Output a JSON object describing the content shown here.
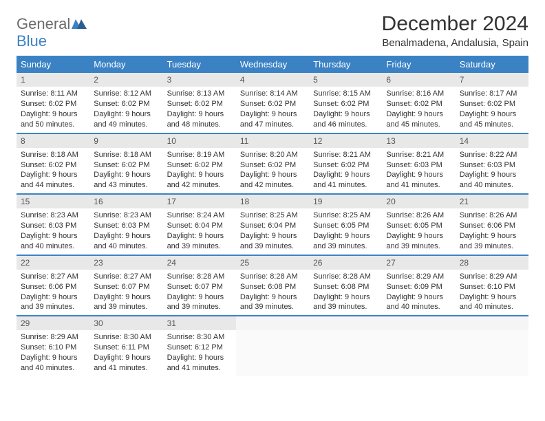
{
  "logo": {
    "text1": "General",
    "text2": "Blue"
  },
  "title": "December 2024",
  "location": "Benalmadena, Andalusia, Spain",
  "colors": {
    "header_bg": "#3b82c4",
    "daynum_bg": "#e8e8e8",
    "text": "#333333",
    "logo_gray": "#6b6b6b",
    "logo_blue": "#3b82c4"
  },
  "day_names": [
    "Sunday",
    "Monday",
    "Tuesday",
    "Wednesday",
    "Thursday",
    "Friday",
    "Saturday"
  ],
  "weeks": [
    [
      {
        "n": "1",
        "sr": "Sunrise: 8:11 AM",
        "ss": "Sunset: 6:02 PM",
        "d1": "Daylight: 9 hours",
        "d2": "and 50 minutes."
      },
      {
        "n": "2",
        "sr": "Sunrise: 8:12 AM",
        "ss": "Sunset: 6:02 PM",
        "d1": "Daylight: 9 hours",
        "d2": "and 49 minutes."
      },
      {
        "n": "3",
        "sr": "Sunrise: 8:13 AM",
        "ss": "Sunset: 6:02 PM",
        "d1": "Daylight: 9 hours",
        "d2": "and 48 minutes."
      },
      {
        "n": "4",
        "sr": "Sunrise: 8:14 AM",
        "ss": "Sunset: 6:02 PM",
        "d1": "Daylight: 9 hours",
        "d2": "and 47 minutes."
      },
      {
        "n": "5",
        "sr": "Sunrise: 8:15 AM",
        "ss": "Sunset: 6:02 PM",
        "d1": "Daylight: 9 hours",
        "d2": "and 46 minutes."
      },
      {
        "n": "6",
        "sr": "Sunrise: 8:16 AM",
        "ss": "Sunset: 6:02 PM",
        "d1": "Daylight: 9 hours",
        "d2": "and 45 minutes."
      },
      {
        "n": "7",
        "sr": "Sunrise: 8:17 AM",
        "ss": "Sunset: 6:02 PM",
        "d1": "Daylight: 9 hours",
        "d2": "and 45 minutes."
      }
    ],
    [
      {
        "n": "8",
        "sr": "Sunrise: 8:18 AM",
        "ss": "Sunset: 6:02 PM",
        "d1": "Daylight: 9 hours",
        "d2": "and 44 minutes."
      },
      {
        "n": "9",
        "sr": "Sunrise: 8:18 AM",
        "ss": "Sunset: 6:02 PM",
        "d1": "Daylight: 9 hours",
        "d2": "and 43 minutes."
      },
      {
        "n": "10",
        "sr": "Sunrise: 8:19 AM",
        "ss": "Sunset: 6:02 PM",
        "d1": "Daylight: 9 hours",
        "d2": "and 42 minutes."
      },
      {
        "n": "11",
        "sr": "Sunrise: 8:20 AM",
        "ss": "Sunset: 6:02 PM",
        "d1": "Daylight: 9 hours",
        "d2": "and 42 minutes."
      },
      {
        "n": "12",
        "sr": "Sunrise: 8:21 AM",
        "ss": "Sunset: 6:02 PM",
        "d1": "Daylight: 9 hours",
        "d2": "and 41 minutes."
      },
      {
        "n": "13",
        "sr": "Sunrise: 8:21 AM",
        "ss": "Sunset: 6:03 PM",
        "d1": "Daylight: 9 hours",
        "d2": "and 41 minutes."
      },
      {
        "n": "14",
        "sr": "Sunrise: 8:22 AM",
        "ss": "Sunset: 6:03 PM",
        "d1": "Daylight: 9 hours",
        "d2": "and 40 minutes."
      }
    ],
    [
      {
        "n": "15",
        "sr": "Sunrise: 8:23 AM",
        "ss": "Sunset: 6:03 PM",
        "d1": "Daylight: 9 hours",
        "d2": "and 40 minutes."
      },
      {
        "n": "16",
        "sr": "Sunrise: 8:23 AM",
        "ss": "Sunset: 6:03 PM",
        "d1": "Daylight: 9 hours",
        "d2": "and 40 minutes."
      },
      {
        "n": "17",
        "sr": "Sunrise: 8:24 AM",
        "ss": "Sunset: 6:04 PM",
        "d1": "Daylight: 9 hours",
        "d2": "and 39 minutes."
      },
      {
        "n": "18",
        "sr": "Sunrise: 8:25 AM",
        "ss": "Sunset: 6:04 PM",
        "d1": "Daylight: 9 hours",
        "d2": "and 39 minutes."
      },
      {
        "n": "19",
        "sr": "Sunrise: 8:25 AM",
        "ss": "Sunset: 6:05 PM",
        "d1": "Daylight: 9 hours",
        "d2": "and 39 minutes."
      },
      {
        "n": "20",
        "sr": "Sunrise: 8:26 AM",
        "ss": "Sunset: 6:05 PM",
        "d1": "Daylight: 9 hours",
        "d2": "and 39 minutes."
      },
      {
        "n": "21",
        "sr": "Sunrise: 8:26 AM",
        "ss": "Sunset: 6:06 PM",
        "d1": "Daylight: 9 hours",
        "d2": "and 39 minutes."
      }
    ],
    [
      {
        "n": "22",
        "sr": "Sunrise: 8:27 AM",
        "ss": "Sunset: 6:06 PM",
        "d1": "Daylight: 9 hours",
        "d2": "and 39 minutes."
      },
      {
        "n": "23",
        "sr": "Sunrise: 8:27 AM",
        "ss": "Sunset: 6:07 PM",
        "d1": "Daylight: 9 hours",
        "d2": "and 39 minutes."
      },
      {
        "n": "24",
        "sr": "Sunrise: 8:28 AM",
        "ss": "Sunset: 6:07 PM",
        "d1": "Daylight: 9 hours",
        "d2": "and 39 minutes."
      },
      {
        "n": "25",
        "sr": "Sunrise: 8:28 AM",
        "ss": "Sunset: 6:08 PM",
        "d1": "Daylight: 9 hours",
        "d2": "and 39 minutes."
      },
      {
        "n": "26",
        "sr": "Sunrise: 8:28 AM",
        "ss": "Sunset: 6:08 PM",
        "d1": "Daylight: 9 hours",
        "d2": "and 39 minutes."
      },
      {
        "n": "27",
        "sr": "Sunrise: 8:29 AM",
        "ss": "Sunset: 6:09 PM",
        "d1": "Daylight: 9 hours",
        "d2": "and 40 minutes."
      },
      {
        "n": "28",
        "sr": "Sunrise: 8:29 AM",
        "ss": "Sunset: 6:10 PM",
        "d1": "Daylight: 9 hours",
        "d2": "and 40 minutes."
      }
    ],
    [
      {
        "n": "29",
        "sr": "Sunrise: 8:29 AM",
        "ss": "Sunset: 6:10 PM",
        "d1": "Daylight: 9 hours",
        "d2": "and 40 minutes."
      },
      {
        "n": "30",
        "sr": "Sunrise: 8:30 AM",
        "ss": "Sunset: 6:11 PM",
        "d1": "Daylight: 9 hours",
        "d2": "and 41 minutes."
      },
      {
        "n": "31",
        "sr": "Sunrise: 8:30 AM",
        "ss": "Sunset: 6:12 PM",
        "d1": "Daylight: 9 hours",
        "d2": "and 41 minutes."
      },
      {
        "empty": true
      },
      {
        "empty": true
      },
      {
        "empty": true
      },
      {
        "empty": true
      }
    ]
  ]
}
